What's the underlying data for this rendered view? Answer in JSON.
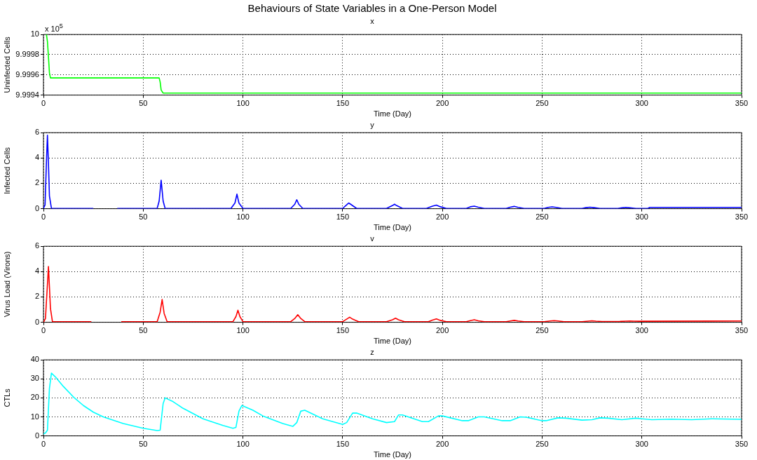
{
  "chart_data": [
    {
      "type": "line",
      "title": "Behaviours of State Variables in a One-Person Model",
      "subtitle": "x",
      "xlabel": "Time (Day)",
      "ylabel": "Uninfected Cells",
      "annotations": [
        "x 10$^{5}$"
      ],
      "xlim": [
        0,
        350
      ],
      "xticks": [
        0,
        50,
        100,
        150,
        200,
        250,
        300,
        350
      ],
      "ylim": [
        9.9994,
        10
      ],
      "yticks": [
        {
          "value": 9.9994,
          "label": "9.9994"
        },
        {
          "value": 9.9996,
          "label": "9.9996"
        },
        {
          "value": 9.9998,
          "label": "9.9998"
        },
        10
      ],
      "grid": true,
      "series": [
        {
          "color": "#00ff00",
          "x": [
            1.5,
            2,
            2.5,
            3,
            3.5,
            58,
            58.5,
            59,
            60,
            350
          ],
          "values": [
            10,
            9.99993,
            9.99978,
            9.99962,
            9.99957,
            9.99957,
            9.99953,
            9.99945,
            9.99942,
            9.99942
          ]
        }
      ]
    },
    {
      "type": "line",
      "title": "y",
      "xlabel": "Time (Day)",
      "ylabel": "Infected Cells",
      "xlim": [
        0,
        350
      ],
      "xticks": [
        0,
        50,
        100,
        150,
        200,
        250,
        300,
        350
      ],
      "ylim": [
        0,
        6
      ],
      "yticks": [
        0,
        2,
        4,
        6
      ],
      "grid": true,
      "series": [
        {
          "color": "#0000ff",
          "x": [
            0,
            0.8,
            1.5,
            2,
            2.5,
            3,
            4,
            25,
            25.1,
            37,
            57,
            58,
            59,
            60,
            61,
            94,
            96,
            97,
            98,
            100,
            124,
            126,
            127,
            128,
            130,
            150,
            152,
            153,
            154,
            157,
            172,
            175,
            176,
            177,
            180,
            192,
            195,
            197,
            199,
            202,
            212,
            214,
            216,
            218,
            221,
            232,
            234,
            236,
            238,
            241,
            251,
            253,
            255,
            257,
            260,
            270,
            272,
            274,
            276,
            279,
            288,
            290,
            292,
            294,
            297,
            303,
            304,
            350
          ],
          "values": [
            0.02,
            0.3,
            3.7,
            5.8,
            3.6,
            1,
            0.02,
            0.02,
            null,
            0.02,
            0.02,
            0.6,
            2.25,
            0.6,
            0.02,
            0.02,
            0.45,
            1.15,
            0.45,
            0.02,
            0.02,
            0.35,
            0.7,
            0.35,
            0.02,
            0.02,
            0.3,
            0.45,
            0.35,
            0.02,
            0.02,
            0.25,
            0.35,
            0.25,
            0.02,
            0.02,
            0.2,
            0.28,
            0.15,
            0.02,
            0.02,
            0.15,
            0.2,
            0.12,
            0.02,
            0.02,
            0.12,
            0.18,
            0.1,
            0.02,
            0.02,
            0.1,
            0.14,
            0.1,
            0.02,
            0.02,
            0.08,
            0.12,
            0.08,
            0.02,
            0.02,
            0.07,
            0.1,
            0.07,
            0.02,
            0.02,
            0.1,
            0.1
          ]
        }
      ]
    },
    {
      "type": "line",
      "title": "v",
      "xlabel": "Time (Day)",
      "ylabel": "Virus Load (Virons)",
      "xlim": [
        0,
        350
      ],
      "xticks": [
        0,
        50,
        100,
        150,
        200,
        250,
        300,
        350
      ],
      "ylim": [
        0,
        6
      ],
      "yticks": [
        0,
        2,
        4,
        6
      ],
      "grid": true,
      "series": [
        {
          "color": "#ff0000",
          "x": [
            0,
            1,
            2,
            2.5,
            3,
            3.5,
            4.5,
            24,
            24.1,
            39,
            57,
            58.5,
            59.5,
            60.5,
            62,
            95,
            96.5,
            97.5,
            98.5,
            100,
            124,
            126,
            127.5,
            129,
            131,
            150,
            152,
            153.5,
            155,
            158,
            172,
            175,
            176.5,
            178,
            181,
            193,
            195,
            197,
            199,
            202,
            212,
            214,
            216,
            218,
            221,
            232,
            234,
            236,
            238,
            241,
            251,
            254,
            256,
            258,
            261,
            270,
            273,
            275,
            277,
            280,
            289,
            292,
            294,
            296,
            299,
            350
          ],
          "values": [
            0,
            0.3,
            3,
            4.4,
            2.8,
            1.1,
            0.05,
            0.05,
            null,
            0.05,
            0.05,
            0.8,
            1.8,
            0.7,
            0.05,
            0.05,
            0.45,
            0.95,
            0.45,
            0.05,
            0.05,
            0.3,
            0.6,
            0.3,
            0.05,
            0.05,
            0.25,
            0.4,
            0.25,
            0.05,
            0.05,
            0.2,
            0.32,
            0.2,
            0.05,
            0.05,
            0.17,
            0.27,
            0.15,
            0.05,
            0.05,
            0.13,
            0.2,
            0.12,
            0.05,
            0.05,
            0.1,
            0.15,
            0.1,
            0.05,
            0.05,
            0.1,
            0.13,
            0.1,
            0.05,
            0.05,
            0.09,
            0.12,
            0.09,
            0.06,
            0.07,
            0.09,
            0.1,
            0.09,
            0.08,
            0.1
          ]
        }
      ]
    },
    {
      "type": "line",
      "title": "z",
      "xlabel": "Time (Day)",
      "ylabel": "CTLs",
      "xlim": [
        0,
        350
      ],
      "xticks": [
        0,
        50,
        100,
        150,
        200,
        250,
        300,
        350
      ],
      "ylim": [
        0,
        40
      ],
      "yticks": [
        0,
        10,
        20,
        30,
        40
      ],
      "grid": true,
      "series": [
        {
          "color": "#00ffff",
          "x": [
            0,
            1,
            2,
            3,
            4,
            6,
            10,
            15,
            20,
            25,
            30,
            40,
            50,
            57,
            58.5,
            60,
            61,
            65,
            70,
            80,
            90,
            95,
            96.5,
            98,
            99.5,
            105,
            110,
            120,
            125,
            127,
            129,
            131,
            140,
            150,
            152,
            155,
            157,
            165,
            172,
            176,
            178,
            180,
            190,
            193,
            198,
            200,
            210,
            213,
            218,
            221,
            230,
            234,
            239,
            242,
            250,
            252,
            258,
            262,
            270,
            275,
            279,
            283,
            290,
            297,
            300,
            305,
            315,
            325,
            335,
            350
          ],
          "values": [
            1,
            1.5,
            3,
            25,
            33,
            31,
            26,
            20.5,
            16,
            12.5,
            10,
            6.5,
            4,
            2.8,
            3,
            17,
            20,
            18,
            14.5,
            9,
            5.5,
            4,
            4.5,
            13,
            16,
            13.5,
            10.5,
            6.5,
            5,
            7,
            13,
            13.5,
            9,
            6,
            7,
            12,
            12,
            9,
            7,
            7.5,
            11,
            11,
            7.5,
            7.5,
            10.5,
            10.5,
            8,
            8,
            10,
            10,
            8,
            8,
            10,
            9.8,
            8,
            8,
            9.5,
            9.3,
            8.3,
            8.5,
            9.5,
            9.3,
            8.5,
            9.3,
            9,
            8.5,
            8.8,
            8.5,
            9,
            8.7
          ]
        }
      ]
    }
  ]
}
